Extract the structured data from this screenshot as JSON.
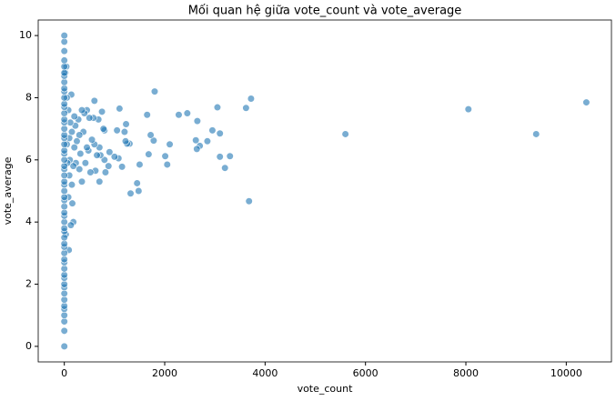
{
  "chart_data": {
    "type": "scatter",
    "title": "Mối quan hệ giữa vote_count và vote_average",
    "xlabel": "vote_count",
    "ylabel": "vote_average",
    "xlim": [
      -520,
      10900
    ],
    "ylim": [
      -0.5,
      10.5
    ],
    "xticks": [
      0,
      2000,
      4000,
      6000,
      8000,
      10000
    ],
    "yticks": [
      0,
      2,
      4,
      6,
      8,
      10
    ],
    "series": [
      {
        "color": "#1f77b4",
        "x": [
          10400,
          9400,
          8050,
          5600,
          3720,
          3620,
          3680,
          3050,
          3100,
          3300,
          3200,
          3100,
          2950,
          2850,
          2700,
          2650,
          2620,
          2640,
          2450,
          2280,
          2100,
          2050,
          2010,
          1800,
          1780,
          1720,
          1680,
          1650,
          1500,
          1480,
          1450,
          1300,
          1320,
          1250,
          1220,
          1230,
          1200,
          1150,
          1100,
          1080,
          1050,
          1000,
          900,
          880,
          820,
          800,
          800,
          780,
          750,
          720,
          700,
          700,
          680,
          650,
          620,
          600,
          600,
          580,
          550,
          520,
          500,
          480,
          450,
          450,
          420,
          400,
          380,
          350,
          350,
          320,
          300,
          300,
          280,
          250,
          230,
          220,
          200,
          200,
          180,
          180,
          160,
          150,
          150,
          140,
          130,
          120,
          110,
          100,
          100,
          90,
          80,
          80,
          60,
          50,
          50,
          40,
          30,
          20,
          0,
          0,
          0,
          0,
          0,
          0,
          0,
          0,
          0,
          0,
          0,
          0,
          0,
          0,
          0,
          0,
          0,
          0,
          0,
          0,
          0,
          0,
          0,
          0,
          0,
          0,
          0,
          0,
          0,
          0,
          0,
          0,
          0,
          0,
          0,
          0,
          0,
          0,
          0,
          0,
          0,
          0,
          0,
          0,
          0,
          0,
          0,
          0,
          0,
          0,
          0,
          0,
          0,
          0,
          0,
          0
        ],
        "values": [
          7.85,
          6.83,
          7.63,
          6.83,
          7.97,
          7.67,
          4.67,
          7.69,
          6.85,
          6.12,
          5.74,
          6.1,
          6.95,
          6.6,
          6.45,
          7.25,
          6.63,
          6.35,
          7.5,
          7.45,
          6.5,
          5.85,
          6.12,
          8.2,
          6.62,
          6.8,
          6.18,
          7.45,
          5.85,
          5.0,
          5.25,
          6.52,
          4.92,
          6.52,
          6.6,
          7.15,
          6.9,
          5.78,
          7.65,
          6.05,
          6.95,
          6.1,
          6.25,
          5.8,
          5.6,
          6.0,
          6.95,
          7.0,
          7.55,
          6.15,
          5.3,
          6.4,
          7.3,
          6.15,
          5.65,
          7.9,
          6.5,
          7.35,
          6.65,
          5.6,
          7.35,
          6.3,
          7.6,
          6.4,
          5.9,
          7.5,
          6.9,
          5.3,
          7.6,
          6.2,
          5.7,
          6.8,
          7.3,
          6.6,
          5.9,
          7.1,
          7.4,
          6.4,
          5.8,
          4.0,
          4.6,
          6.9,
          5.2,
          8.1,
          3.9,
          7.2,
          6.0,
          5.5,
          6.7,
          3.1,
          7.6,
          4.8,
          5.9,
          6.5,
          8.0,
          9.0,
          3.6,
          8.8,
          0,
          0.5,
          0.8,
          1,
          1.2,
          1.3,
          1.5,
          1.7,
          1.9,
          2,
          2.2,
          2.3,
          2.5,
          2.7,
          2.8,
          3,
          3.2,
          3.3,
          3.5,
          3.7,
          3.8,
          4,
          4.2,
          4.3,
          4.5,
          4.7,
          4.8,
          5,
          5.2,
          5.3,
          5.5,
          5.7,
          5.8,
          6,
          6.2,
          6.3,
          6.5,
          6.7,
          6.8,
          7,
          7.2,
          7.3,
          7.5,
          7.7,
          7.8,
          8,
          8.2,
          8.3,
          8.5,
          8.7,
          8.8,
          9,
          9.2,
          9.5,
          9.8,
          10
        ]
      }
    ]
  }
}
